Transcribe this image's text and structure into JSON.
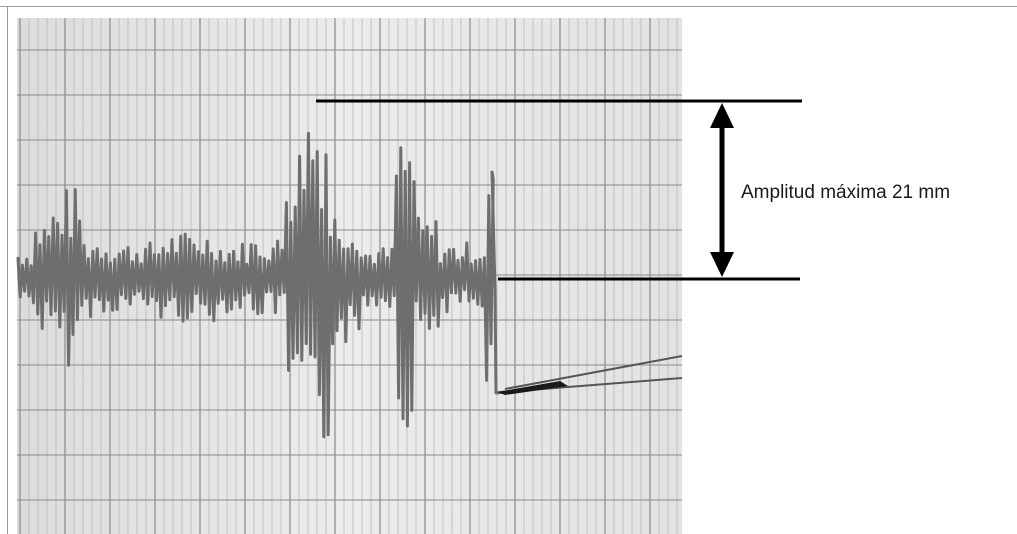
{
  "annotation": {
    "label": "Amplitud máxima 21 mm"
  },
  "colors": {
    "paper": "#e6e6e6",
    "grid_minor": "#b8b8b8",
    "grid_major": "#8a8a8a",
    "trace": "#6e6e6e",
    "annotation": "#000000",
    "stylus": "#1a1a1a"
  },
  "icons": {
    "dimension_arrow": "double-headed-vertical-arrow",
    "stylus": "recording-pen-icon"
  }
}
